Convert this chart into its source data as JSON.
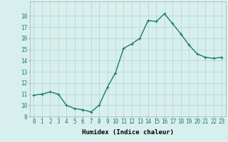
{
  "x": [
    0,
    1,
    2,
    3,
    4,
    5,
    6,
    7,
    8,
    9,
    10,
    11,
    12,
    13,
    14,
    15,
    16,
    17,
    18,
    19,
    20,
    21,
    22,
    23
  ],
  "y": [
    10.9,
    11.0,
    11.2,
    11.0,
    10.0,
    9.7,
    9.6,
    9.4,
    10.0,
    11.6,
    12.9,
    15.1,
    15.5,
    16.0,
    17.6,
    17.5,
    18.2,
    17.3,
    16.4,
    15.4,
    14.6,
    14.3,
    14.2,
    14.3
  ],
  "line_color": "#1a7a6e",
  "bg_color": "#d8f0ed",
  "grid_color": "#b8d8d4",
  "xlabel": "Humidex (Indice chaleur)",
  "ylim": [
    9,
    19
  ],
  "xlim_min": -0.5,
  "xlim_max": 23.5,
  "yticks": [
    9,
    10,
    11,
    12,
    13,
    14,
    15,
    16,
    17,
    18
  ],
  "xticks": [
    0,
    1,
    2,
    3,
    4,
    5,
    6,
    7,
    8,
    9,
    10,
    11,
    12,
    13,
    14,
    15,
    16,
    17,
    18,
    19,
    20,
    21,
    22,
    23
  ],
  "xlabel_fontsize": 6.5,
  "tick_fontsize": 5.5,
  "marker": "+",
  "marker_size": 3.5,
  "line_width": 1.0
}
